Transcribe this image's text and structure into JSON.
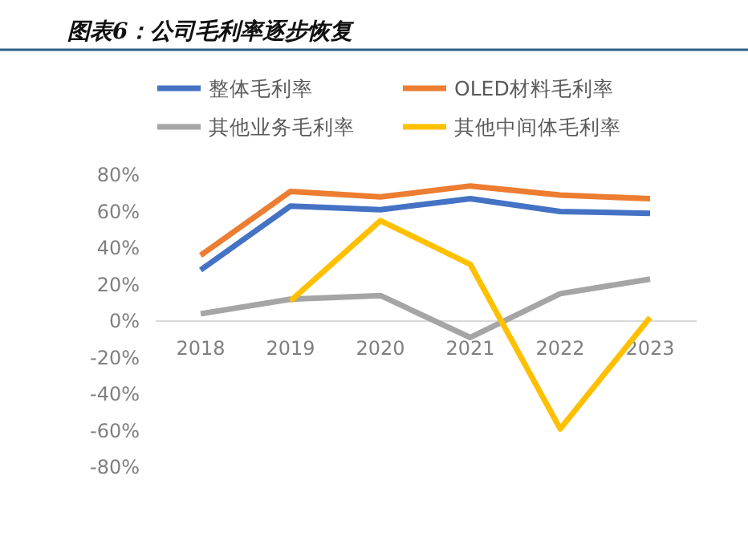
{
  "chart_data": {
    "type": "line",
    "title": "图表6：公司毛利率逐步恢复",
    "categories": [
      "2018",
      "2019",
      "2020",
      "2021",
      "2022",
      "2023"
    ],
    "series": [
      {
        "name": "整体毛利率",
        "color": "#4472c4",
        "values": [
          28,
          63,
          61,
          67,
          60,
          59
        ]
      },
      {
        "name": "OLED材料毛利率",
        "color": "#ed7d31",
        "values": [
          36,
          71,
          68,
          74,
          69,
          67
        ]
      },
      {
        "name": "其他业务毛利率",
        "color": "#a5a5a5",
        "values": [
          4,
          12,
          14,
          -9,
          15,
          23
        ]
      },
      {
        "name": "其他中间体毛利率",
        "color": "#ffc000",
        "values": [
          null,
          11,
          55,
          31,
          -59,
          2
        ]
      }
    ],
    "ylim": [
      -80,
      80
    ],
    "yticks": [
      {
        "value": -80,
        "label": "-80%"
      },
      {
        "value": -60,
        "label": "-60%"
      },
      {
        "value": -40,
        "label": "-40%"
      },
      {
        "value": -20,
        "label": "-20%"
      },
      {
        "value": 0,
        "label": "0%"
      },
      {
        "value": 20,
        "label": "20%"
      },
      {
        "value": 40,
        "label": "40%"
      },
      {
        "value": 60,
        "label": "60%"
      },
      {
        "value": 80,
        "label": "80%"
      }
    ],
    "grid": false,
    "legend": "top",
    "marker": "none",
    "line_style": "solid"
  }
}
